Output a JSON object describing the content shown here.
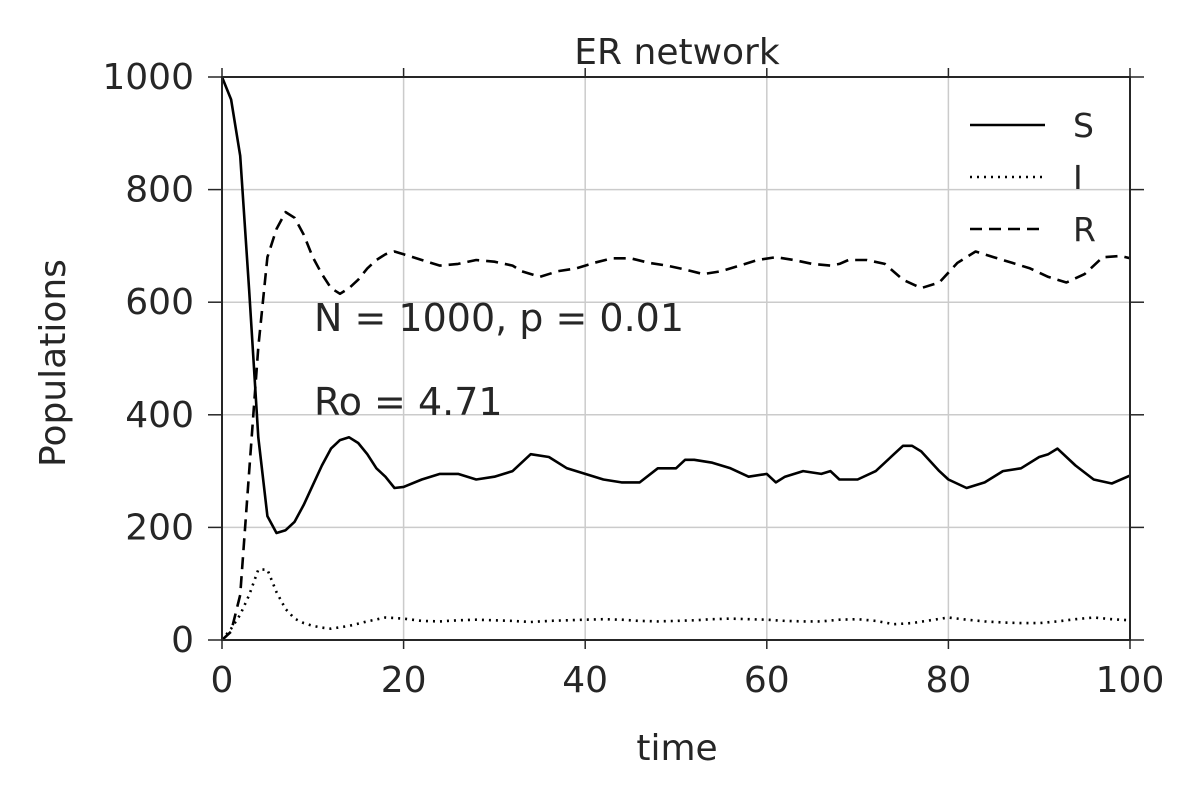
{
  "chart_data": {
    "type": "line",
    "title": "ER network",
    "xlabel": "time",
    "ylabel": "Populations",
    "xlim": [
      0,
      100
    ],
    "ylim": [
      0,
      1000
    ],
    "xticks": [
      0,
      20,
      40,
      60,
      80,
      100
    ],
    "yticks": [
      0,
      200,
      400,
      600,
      800,
      1000
    ],
    "grid": true,
    "legend_position": "top-right",
    "annotations": [
      "N = 1000, p = 0.01",
      "Ro = 4.71"
    ],
    "line_color": "#000000",
    "grid_color": "#cbcbcb",
    "series": [
      {
        "name": "S",
        "style": "solid",
        "x": [
          0,
          1,
          2,
          3,
          4,
          5,
          6,
          7,
          8,
          9,
          10,
          11,
          12,
          13,
          14,
          15,
          16,
          17,
          18,
          19,
          20,
          22,
          24,
          26,
          28,
          30,
          32,
          34,
          36,
          38,
          40,
          42,
          44,
          46,
          48,
          50,
          51,
          52,
          54,
          56,
          58,
          60,
          61,
          62,
          64,
          66,
          67,
          68,
          70,
          72,
          74,
          75,
          76,
          77,
          79,
          80,
          82,
          84,
          86,
          88,
          90,
          91,
          92,
          94,
          96,
          98,
          100
        ],
        "y": [
          1000,
          960,
          860,
          620,
          360,
          220,
          190,
          195,
          210,
          240,
          275,
          310,
          340,
          355,
          360,
          350,
          330,
          305,
          290,
          270,
          272,
          285,
          295,
          295,
          285,
          290,
          300,
          330,
          325,
          305,
          295,
          285,
          280,
          280,
          305,
          305,
          320,
          320,
          315,
          305,
          290,
          295,
          280,
          290,
          300,
          295,
          300,
          285,
          285,
          300,
          330,
          345,
          345,
          335,
          300,
          285,
          270,
          280,
          300,
          305,
          325,
          330,
          340,
          310,
          285,
          278,
          292
        ]
      },
      {
        "name": "I",
        "style": "dotted",
        "x": [
          0,
          1,
          2,
          3,
          4,
          5,
          6,
          7,
          8,
          9,
          10,
          11,
          12,
          14,
          16,
          18,
          20,
          22,
          24,
          26,
          28,
          30,
          32,
          34,
          36,
          38,
          40,
          42,
          44,
          46,
          48,
          50,
          52,
          54,
          56,
          58,
          60,
          62,
          64,
          66,
          68,
          70,
          72,
          74,
          76,
          78,
          80,
          82,
          84,
          86,
          88,
          90,
          92,
          94,
          96,
          98,
          100
        ],
        "y": [
          0,
          20,
          45,
          80,
          125,
          125,
          85,
          55,
          38,
          30,
          25,
          22,
          20,
          25,
          33,
          40,
          38,
          34,
          33,
          35,
          36,
          35,
          34,
          32,
          34,
          35,
          36,
          37,
          36,
          34,
          33,
          34,
          35,
          37,
          38,
          37,
          36,
          34,
          33,
          33,
          36,
          37,
          34,
          28,
          30,
          35,
          40,
          36,
          33,
          31,
          30,
          30,
          33,
          37,
          40,
          37,
          35
        ]
      },
      {
        "name": "R",
        "style": "dashed",
        "x": [
          0,
          1,
          2,
          3,
          4,
          5,
          6,
          7,
          8,
          9,
          10,
          11,
          12,
          13,
          14,
          15,
          16,
          17,
          18,
          19,
          20,
          22,
          24,
          26,
          28,
          30,
          32,
          33,
          35,
          37,
          39,
          41,
          43,
          45,
          47,
          49,
          51,
          53,
          55,
          57,
          59,
          61,
          63,
          65,
          67,
          68,
          69,
          71,
          73,
          75,
          77,
          79,
          81,
          83,
          85,
          87,
          89,
          91,
          93,
          95,
          97,
          99,
          100
        ],
        "y": [
          0,
          15,
          80,
          300,
          520,
          680,
          730,
          760,
          750,
          720,
          680,
          650,
          625,
          615,
          625,
          640,
          660,
          675,
          685,
          690,
          685,
          675,
          665,
          668,
          675,
          672,
          665,
          655,
          645,
          655,
          660,
          670,
          678,
          678,
          670,
          665,
          658,
          650,
          655,
          665,
          675,
          680,
          675,
          668,
          665,
          668,
          675,
          675,
          668,
          640,
          625,
          635,
          670,
          690,
          680,
          670,
          660,
          645,
          635,
          650,
          680,
          682,
          678
        ]
      }
    ]
  }
}
